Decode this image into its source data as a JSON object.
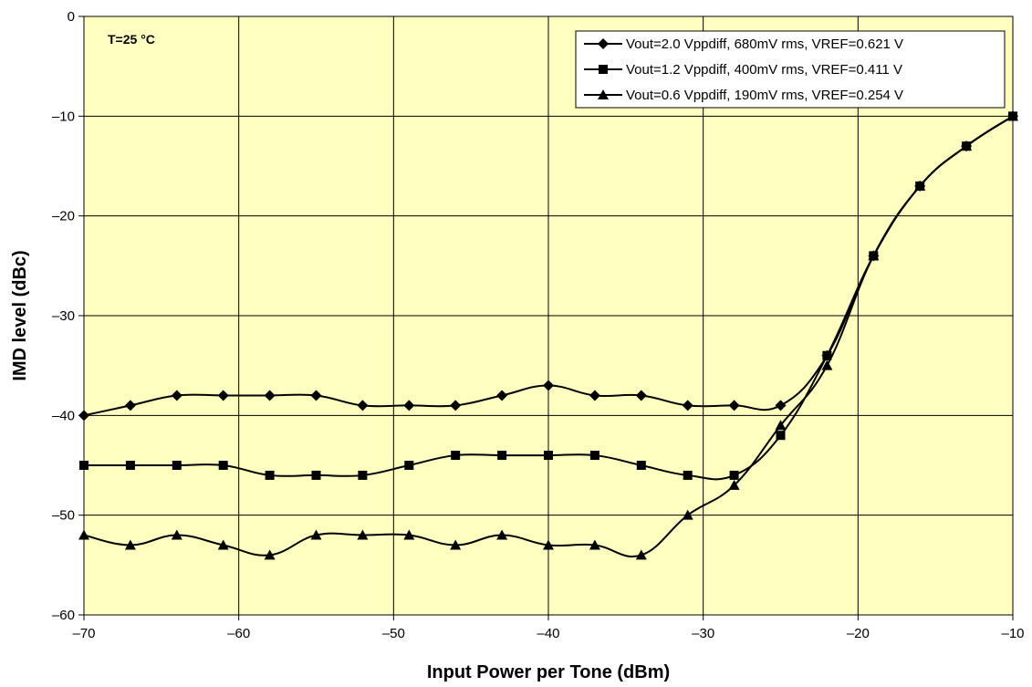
{
  "chart_data": {
    "type": "line",
    "title": "",
    "xlabel": "Input Power per Tone (dBm)",
    "ylabel": "IMD level (dBc)",
    "xlim": [
      -70,
      -10
    ],
    "ylim": [
      -60,
      0
    ],
    "x_ticks": [
      -70,
      -60,
      -50,
      -40,
      -30,
      -20,
      -10
    ],
    "y_ticks": [
      0,
      -10,
      -20,
      -30,
      -40,
      -50,
      -60
    ],
    "grid": true,
    "plot_background": "#ffffc0",
    "annotation": {
      "text": "T=25 °C"
    },
    "legend_position": "top-right",
    "x": [
      -70,
      -67,
      -64,
      -61,
      -58,
      -55,
      -52,
      -49,
      -46,
      -43,
      -40,
      -37,
      -34,
      -31,
      -28,
      -25,
      -22,
      -19,
      -16,
      -13,
      -10
    ],
    "series": [
      {
        "name": "Vout=2.0 Vppdiff, 680mV rms, VREF=0.621 V",
        "marker": "diamond",
        "values": [
          -40,
          -39,
          -38,
          -38,
          -38,
          -38,
          -39,
          -39,
          -39,
          -38,
          -37,
          -38,
          -38,
          -39,
          -39,
          -39,
          -34,
          -24,
          -17,
          -13,
          -10
        ]
      },
      {
        "name": "Vout=1.2 Vppdiff, 400mV rms, VREF=0.411 V",
        "marker": "square",
        "values": [
          -45,
          -45,
          -45,
          -45,
          -46,
          -46,
          -46,
          -45,
          -44,
          -44,
          -44,
          -44,
          -45,
          -46,
          -46,
          -42,
          -34,
          -24,
          -17,
          -13,
          -10
        ]
      },
      {
        "name": "Vout=0.6 Vppdiff, 190mV rms, VREF=0.254 V",
        "marker": "triangle",
        "values": [
          -52,
          -53,
          -52,
          -53,
          -54,
          -52,
          -52,
          -52,
          -53,
          -52,
          -53,
          -53,
          -54,
          -50,
          -47,
          -41,
          -35,
          -24,
          -17,
          -13,
          -10
        ]
      }
    ]
  }
}
